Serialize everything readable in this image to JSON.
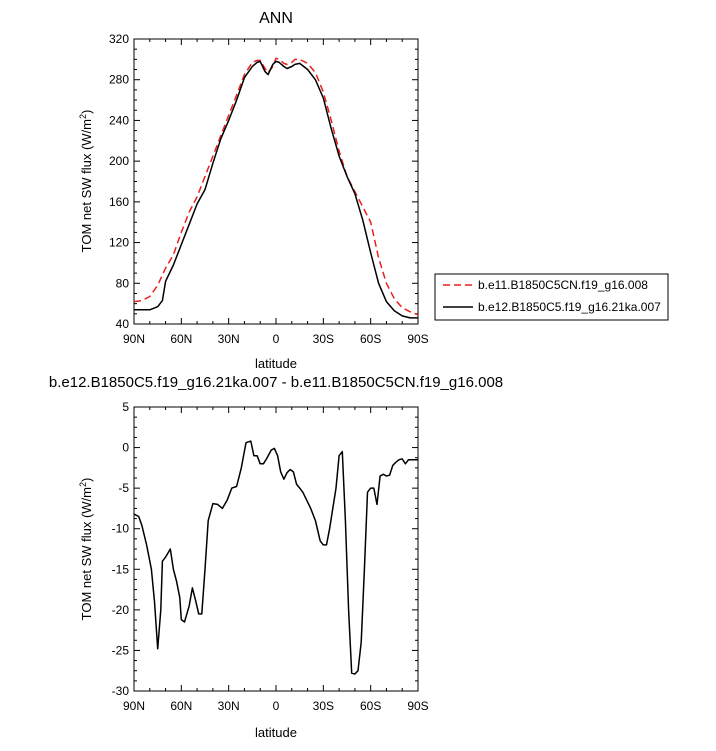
{
  "chart_data": [
    {
      "type": "line",
      "title": "ANN",
      "xlabel": "latitude",
      "ylabel": "TOM net SW flux (W/m",
      "ylabel_sup": "2",
      "ylabel_close": ")",
      "xlim": [
        90,
        -90
      ],
      "ylim": [
        40,
        320
      ],
      "x_ticks": [
        90,
        60,
        30,
        0,
        -30,
        -60,
        -90
      ],
      "x_tick_labels": [
        "90N",
        "60N",
        "30N",
        "0",
        "30S",
        "60S",
        "90S"
      ],
      "y_ticks": [
        40,
        80,
        120,
        160,
        200,
        240,
        280,
        320
      ],
      "y_tick_labels": [
        "40",
        "80",
        "120",
        "160",
        "200",
        "240",
        "280",
        "320"
      ],
      "legend_position": "right",
      "series": [
        {
          "name": "b.e11.B1850C5CN.f19_g16.008",
          "color": "#e8201e",
          "dash": "dashed",
          "x": [
            90,
            85,
            80,
            75,
            70,
            65,
            60,
            55,
            50,
            45,
            40,
            35,
            30,
            25,
            20,
            15,
            12,
            10,
            7,
            5,
            2,
            0,
            -2,
            -5,
            -7,
            -10,
            -12,
            -15,
            -20,
            -25,
            -30,
            -35,
            -40,
            -45,
            -50,
            -55,
            -60,
            -65,
            -70,
            -75,
            -80,
            -85,
            -90
          ],
          "values": [
            62,
            63,
            67,
            78,
            95,
            108,
            130,
            150,
            165,
            185,
            205,
            225,
            245,
            265,
            285,
            297,
            299,
            299,
            291,
            287,
            293,
            301,
            300,
            296,
            295,
            297,
            300,
            300,
            296,
            287,
            268,
            240,
            210,
            185,
            170,
            155,
            140,
            105,
            80,
            65,
            56,
            52,
            49
          ]
        },
        {
          "name": "b.e12.B1850C5.f19_g16.21ka.007",
          "color": "#000000",
          "dash": "solid",
          "x": [
            90,
            85,
            80,
            75,
            72,
            70,
            65,
            60,
            55,
            50,
            45,
            40,
            35,
            30,
            25,
            20,
            15,
            12,
            10,
            7,
            5,
            2,
            0,
            -2,
            -5,
            -7,
            -10,
            -12,
            -15,
            -20,
            -25,
            -30,
            -35,
            -40,
            -45,
            -50,
            -55,
            -60,
            -65,
            -70,
            -75,
            -80,
            -85,
            -90
          ],
          "values": [
            54,
            54,
            54,
            57,
            63,
            82,
            98,
            118,
            138,
            158,
            172,
            198,
            222,
            240,
            260,
            282,
            293,
            297,
            298,
            288,
            285,
            295,
            298,
            297,
            293,
            291,
            293,
            295,
            296,
            290,
            280,
            262,
            232,
            205,
            185,
            168,
            142,
            110,
            80,
            62,
            53,
            48,
            46,
            46
          ]
        }
      ]
    },
    {
      "type": "line",
      "title": "b.e12.B1850C5.f19_g16.21ka.007 - b.e11.B1850C5CN.f19_g16.008",
      "xlabel": "latitude",
      "ylabel": "TOM net SW flux (W/m",
      "ylabel_sup": "2",
      "ylabel_close": ")",
      "xlim": [
        90,
        -90
      ],
      "ylim": [
        -30,
        5
      ],
      "x_ticks": [
        90,
        60,
        30,
        0,
        -30,
        -60,
        -90
      ],
      "x_tick_labels": [
        "90N",
        "60N",
        "30N",
        "0",
        "30S",
        "60S",
        "90S"
      ],
      "y_ticks": [
        5,
        0,
        -5,
        -10,
        -15,
        -20,
        -25,
        -30
      ],
      "y_tick_labels": [
        "5",
        "0",
        "-5",
        "-10",
        "-15",
        "-20",
        "-25",
        "-30"
      ],
      "series": [
        {
          "color": "#000000",
          "x": [
            90,
            87,
            85,
            82,
            79,
            77,
            75,
            73,
            72,
            70,
            67,
            65,
            63,
            61,
            60,
            58,
            55,
            53,
            51,
            49,
            47,
            45,
            43,
            40,
            37,
            34,
            31,
            28,
            25,
            22,
            19,
            16,
            14,
            12,
            10,
            8,
            6,
            3,
            1,
            -1,
            -3,
            -5,
            -7,
            -9,
            -11,
            -13,
            -15,
            -17,
            -19,
            -22,
            -25,
            -28,
            -30,
            -32,
            -34,
            -36,
            -38,
            -40,
            -42,
            -44,
            -46,
            -48,
            -50,
            -52,
            -54,
            -56,
            -58,
            -60,
            -62,
            -64,
            -66,
            -68,
            -70,
            -72,
            -74,
            -76,
            -78,
            -80,
            -82,
            -84,
            -86,
            -88,
            -90
          ],
          "values": [
            -8.2,
            -8.5,
            -9.6,
            -12.0,
            -15.0,
            -19.0,
            -24.8,
            -20.0,
            -14.0,
            -13.5,
            -12.5,
            -15.0,
            -16.5,
            -18.5,
            -21.2,
            -21.5,
            -19.5,
            -17.3,
            -18.8,
            -20.5,
            -20.5,
            -15.0,
            -9.0,
            -6.9,
            -7.0,
            -7.5,
            -6.5,
            -5.0,
            -4.8,
            -2.5,
            0.6,
            0.8,
            -1.0,
            -1.0,
            -2.0,
            -2.0,
            -1.4,
            -0.3,
            -0.1,
            -1.0,
            -3.0,
            -3.9,
            -3.1,
            -2.7,
            -3.0,
            -4.5,
            -5.0,
            -5.5,
            -6.3,
            -7.5,
            -9.0,
            -11.5,
            -12.0,
            -12.0,
            -10.0,
            -7.5,
            -5.0,
            -1.0,
            -0.5,
            -9.0,
            -20.0,
            -27.8,
            -27.9,
            -27.5,
            -24.0,
            -15.0,
            -5.5,
            -5.0,
            -5.0,
            -7.0,
            -3.5,
            -3.3,
            -3.5,
            -3.4,
            -2.2,
            -1.8,
            -1.5,
            -1.4,
            -2.0,
            -1.5,
            -1.5,
            -1.5,
            -1.5
          ]
        }
      ]
    }
  ]
}
